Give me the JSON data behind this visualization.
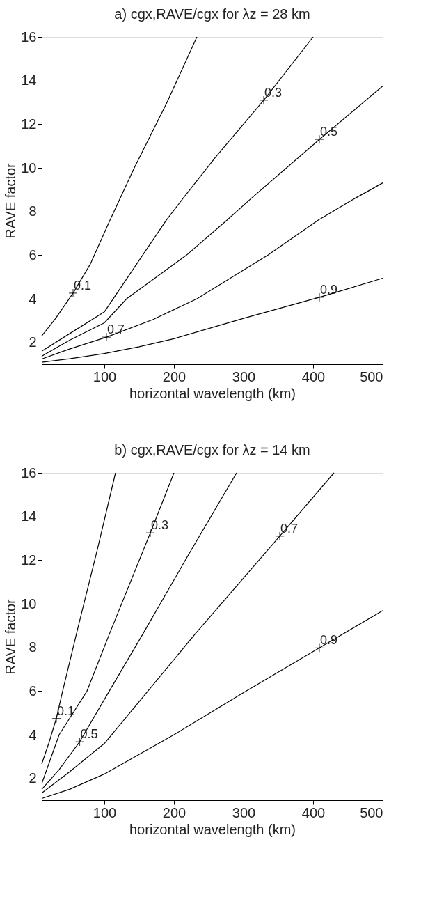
{
  "chart_data": [
    {
      "type": "line",
      "title": "a) cgx,RAVE/cgx for λz = 28 km",
      "xlabel": "horizontal wavelength (km)",
      "ylabel": "RAVE factor",
      "xlim": [
        10,
        500
      ],
      "xticks": [
        100,
        200,
        300,
        400,
        500
      ],
      "ylim": [
        1,
        16
      ],
      "yticks": [
        2,
        4,
        6,
        8,
        10,
        12,
        14,
        16
      ],
      "grid": false,
      "marker": "none",
      "line_style": "solid",
      "series": [
        {
          "color": "#000000",
          "x": [
            10,
            30,
            55,
            80,
            108,
            143,
            190,
            233
          ],
          "values": [
            2.3,
            3.1,
            4.26,
            5.6,
            7.6,
            10,
            13,
            16
          ]
        },
        {
          "color": "#000000",
          "x": [
            10,
            50,
            100,
            155,
            189,
            213,
            260,
            329,
            400
          ],
          "values": [
            1.6,
            2.4,
            3.4,
            6,
            7.6,
            8.6,
            10.5,
            13.1,
            16
          ]
        },
        {
          "color": "#000000",
          "x": [
            10,
            50,
            100,
            132,
            218,
            276,
            311,
            409,
            500
          ],
          "values": [
            1.37,
            2.1,
            2.9,
            4,
            6,
            7.6,
            8.6,
            11.3,
            13.75
          ]
        },
        {
          "color": "#000000",
          "x": [
            10,
            50,
            103,
            170,
            233,
            335,
            407,
            460,
            500
          ],
          "values": [
            1.24,
            1.7,
            2.24,
            3.05,
            4,
            6,
            7.6,
            8.6,
            9.31
          ]
        },
        {
          "color": "#000000",
          "x": [
            10,
            50,
            100,
            150,
            200,
            300,
            409,
            500
          ],
          "values": [
            1.09,
            1.25,
            1.49,
            1.8,
            2.17,
            3.1,
            4.07,
            4.94
          ]
        }
      ],
      "annotations": [
        {
          "text": "0.1",
          "x": 55,
          "y": 4.26
        },
        {
          "text": "0.3",
          "x": 329,
          "y": 13.1
        },
        {
          "text": "0.5",
          "x": 409,
          "y": 11.3
        },
        {
          "text": "0.7",
          "x": 103,
          "y": 2.24
        },
        {
          "text": "0.9",
          "x": 409,
          "y": 4.07
        }
      ]
    },
    {
      "type": "line",
      "title": "b) cgx,RAVE/cgx for λz = 14 km",
      "xlabel": "horizontal wavelength (km)",
      "ylabel": "RAVE factor",
      "xlim": [
        10,
        500
      ],
      "xticks": [
        100,
        200,
        300,
        400,
        500
      ],
      "ylim": [
        1,
        16
      ],
      "yticks": [
        2,
        4,
        6,
        8,
        10,
        12,
        14,
        16
      ],
      "grid": false,
      "marker": "none",
      "line_style": "solid",
      "series": [
        {
          "color": "#000000",
          "x": [
            10,
            20,
            31,
            40,
            62,
            90,
            116
          ],
          "values": [
            2.66,
            3.6,
            4.75,
            6,
            8.9,
            12.5,
            16
          ]
        },
        {
          "color": "#000000",
          "x": [
            10,
            35,
            75,
            107,
            166,
            200
          ],
          "values": [
            1.76,
            4,
            6,
            8.6,
            13.25,
            16
          ]
        },
        {
          "color": "#000000",
          "x": [
            10,
            35,
            64.5,
            107,
            155,
            220,
            290
          ],
          "values": [
            1.5,
            2.4,
            3.68,
            6,
            8.6,
            12.2,
            16
          ]
        },
        {
          "color": "#000000",
          "x": [
            10,
            50,
            100,
            160,
            230,
            352,
            430
          ],
          "values": [
            1.33,
            2.3,
            3.6,
            5.9,
            8.6,
            13.1,
            16
          ]
        },
        {
          "color": "#000000",
          "x": [
            10,
            50,
            100,
            200,
            300,
            409,
            500
          ],
          "values": [
            1.08,
            1.5,
            2.2,
            4,
            5.93,
            7.98,
            9.69
          ]
        }
      ],
      "annotations": [
        {
          "text": "0.1",
          "x": 31,
          "y": 4.75
        },
        {
          "text": "0.3",
          "x": 166,
          "y": 13.25
        },
        {
          "text": "0.5",
          "x": 64.5,
          "y": 3.68
        },
        {
          "text": "0.7",
          "x": 352,
          "y": 13.1
        },
        {
          "text": "0.9",
          "x": 409,
          "y": 7.98
        }
      ]
    }
  ]
}
